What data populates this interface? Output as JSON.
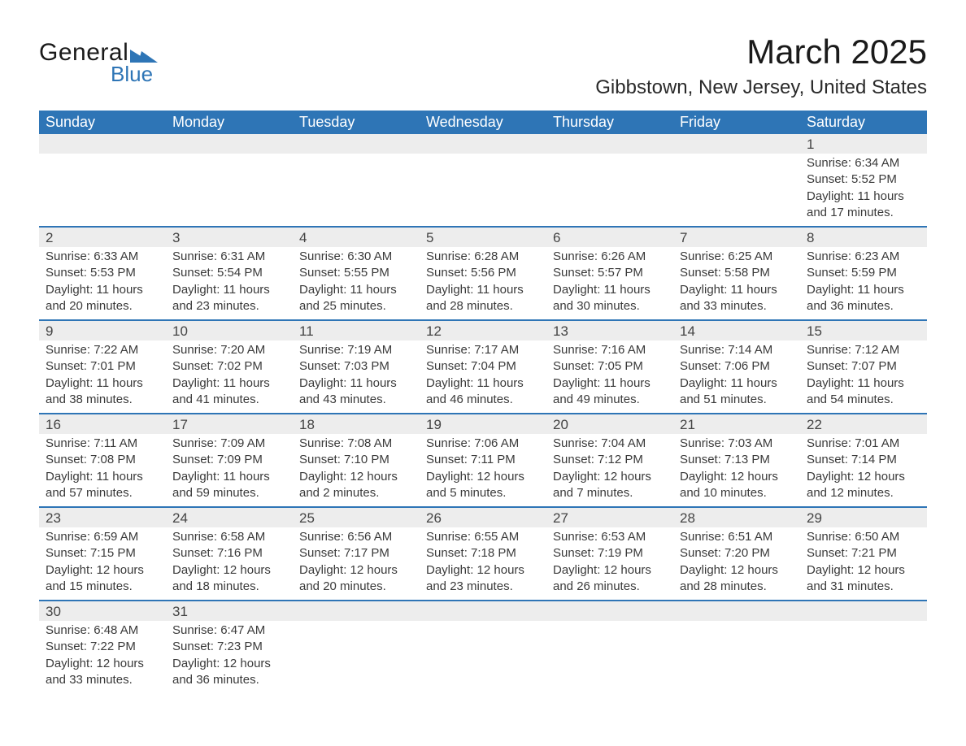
{
  "brand": {
    "word1": "General",
    "word2": "Blue",
    "accent_color": "#2e75b6"
  },
  "title": "March 2025",
  "location": "Gibbstown, New Jersey, United States",
  "colors": {
    "header_bg": "#2e75b6",
    "header_fg": "#ffffff",
    "daynum_bg": "#ededed",
    "rule": "#2e75b6",
    "text": "#3a3a3a",
    "background": "#ffffff"
  },
  "typography": {
    "title_fontsize": 42,
    "location_fontsize": 24,
    "dayheader_fontsize": 18,
    "daynum_fontsize": 17,
    "body_fontsize": 15
  },
  "day_headers": [
    "Sunday",
    "Monday",
    "Tuesday",
    "Wednesday",
    "Thursday",
    "Friday",
    "Saturday"
  ],
  "weeks": [
    [
      null,
      null,
      null,
      null,
      null,
      null,
      {
        "n": "1",
        "sunrise": "Sunrise: 6:34 AM",
        "sunset": "Sunset: 5:52 PM",
        "day1": "Daylight: 11 hours",
        "day2": "and 17 minutes."
      }
    ],
    [
      {
        "n": "2",
        "sunrise": "Sunrise: 6:33 AM",
        "sunset": "Sunset: 5:53 PM",
        "day1": "Daylight: 11 hours",
        "day2": "and 20 minutes."
      },
      {
        "n": "3",
        "sunrise": "Sunrise: 6:31 AM",
        "sunset": "Sunset: 5:54 PM",
        "day1": "Daylight: 11 hours",
        "day2": "and 23 minutes."
      },
      {
        "n": "4",
        "sunrise": "Sunrise: 6:30 AM",
        "sunset": "Sunset: 5:55 PM",
        "day1": "Daylight: 11 hours",
        "day2": "and 25 minutes."
      },
      {
        "n": "5",
        "sunrise": "Sunrise: 6:28 AM",
        "sunset": "Sunset: 5:56 PM",
        "day1": "Daylight: 11 hours",
        "day2": "and 28 minutes."
      },
      {
        "n": "6",
        "sunrise": "Sunrise: 6:26 AM",
        "sunset": "Sunset: 5:57 PM",
        "day1": "Daylight: 11 hours",
        "day2": "and 30 minutes."
      },
      {
        "n": "7",
        "sunrise": "Sunrise: 6:25 AM",
        "sunset": "Sunset: 5:58 PM",
        "day1": "Daylight: 11 hours",
        "day2": "and 33 minutes."
      },
      {
        "n": "8",
        "sunrise": "Sunrise: 6:23 AM",
        "sunset": "Sunset: 5:59 PM",
        "day1": "Daylight: 11 hours",
        "day2": "and 36 minutes."
      }
    ],
    [
      {
        "n": "9",
        "sunrise": "Sunrise: 7:22 AM",
        "sunset": "Sunset: 7:01 PM",
        "day1": "Daylight: 11 hours",
        "day2": "and 38 minutes."
      },
      {
        "n": "10",
        "sunrise": "Sunrise: 7:20 AM",
        "sunset": "Sunset: 7:02 PM",
        "day1": "Daylight: 11 hours",
        "day2": "and 41 minutes."
      },
      {
        "n": "11",
        "sunrise": "Sunrise: 7:19 AM",
        "sunset": "Sunset: 7:03 PM",
        "day1": "Daylight: 11 hours",
        "day2": "and 43 minutes."
      },
      {
        "n": "12",
        "sunrise": "Sunrise: 7:17 AM",
        "sunset": "Sunset: 7:04 PM",
        "day1": "Daylight: 11 hours",
        "day2": "and 46 minutes."
      },
      {
        "n": "13",
        "sunrise": "Sunrise: 7:16 AM",
        "sunset": "Sunset: 7:05 PM",
        "day1": "Daylight: 11 hours",
        "day2": "and 49 minutes."
      },
      {
        "n": "14",
        "sunrise": "Sunrise: 7:14 AM",
        "sunset": "Sunset: 7:06 PM",
        "day1": "Daylight: 11 hours",
        "day2": "and 51 minutes."
      },
      {
        "n": "15",
        "sunrise": "Sunrise: 7:12 AM",
        "sunset": "Sunset: 7:07 PM",
        "day1": "Daylight: 11 hours",
        "day2": "and 54 minutes."
      }
    ],
    [
      {
        "n": "16",
        "sunrise": "Sunrise: 7:11 AM",
        "sunset": "Sunset: 7:08 PM",
        "day1": "Daylight: 11 hours",
        "day2": "and 57 minutes."
      },
      {
        "n": "17",
        "sunrise": "Sunrise: 7:09 AM",
        "sunset": "Sunset: 7:09 PM",
        "day1": "Daylight: 11 hours",
        "day2": "and 59 minutes."
      },
      {
        "n": "18",
        "sunrise": "Sunrise: 7:08 AM",
        "sunset": "Sunset: 7:10 PM",
        "day1": "Daylight: 12 hours",
        "day2": "and 2 minutes."
      },
      {
        "n": "19",
        "sunrise": "Sunrise: 7:06 AM",
        "sunset": "Sunset: 7:11 PM",
        "day1": "Daylight: 12 hours",
        "day2": "and 5 minutes."
      },
      {
        "n": "20",
        "sunrise": "Sunrise: 7:04 AM",
        "sunset": "Sunset: 7:12 PM",
        "day1": "Daylight: 12 hours",
        "day2": "and 7 minutes."
      },
      {
        "n": "21",
        "sunrise": "Sunrise: 7:03 AM",
        "sunset": "Sunset: 7:13 PM",
        "day1": "Daylight: 12 hours",
        "day2": "and 10 minutes."
      },
      {
        "n": "22",
        "sunrise": "Sunrise: 7:01 AM",
        "sunset": "Sunset: 7:14 PM",
        "day1": "Daylight: 12 hours",
        "day2": "and 12 minutes."
      }
    ],
    [
      {
        "n": "23",
        "sunrise": "Sunrise: 6:59 AM",
        "sunset": "Sunset: 7:15 PM",
        "day1": "Daylight: 12 hours",
        "day2": "and 15 minutes."
      },
      {
        "n": "24",
        "sunrise": "Sunrise: 6:58 AM",
        "sunset": "Sunset: 7:16 PM",
        "day1": "Daylight: 12 hours",
        "day2": "and 18 minutes."
      },
      {
        "n": "25",
        "sunrise": "Sunrise: 6:56 AM",
        "sunset": "Sunset: 7:17 PM",
        "day1": "Daylight: 12 hours",
        "day2": "and 20 minutes."
      },
      {
        "n": "26",
        "sunrise": "Sunrise: 6:55 AM",
        "sunset": "Sunset: 7:18 PM",
        "day1": "Daylight: 12 hours",
        "day2": "and 23 minutes."
      },
      {
        "n": "27",
        "sunrise": "Sunrise: 6:53 AM",
        "sunset": "Sunset: 7:19 PM",
        "day1": "Daylight: 12 hours",
        "day2": "and 26 minutes."
      },
      {
        "n": "28",
        "sunrise": "Sunrise: 6:51 AM",
        "sunset": "Sunset: 7:20 PM",
        "day1": "Daylight: 12 hours",
        "day2": "and 28 minutes."
      },
      {
        "n": "29",
        "sunrise": "Sunrise: 6:50 AM",
        "sunset": "Sunset: 7:21 PM",
        "day1": "Daylight: 12 hours",
        "day2": "and 31 minutes."
      }
    ],
    [
      {
        "n": "30",
        "sunrise": "Sunrise: 6:48 AM",
        "sunset": "Sunset: 7:22 PM",
        "day1": "Daylight: 12 hours",
        "day2": "and 33 minutes."
      },
      {
        "n": "31",
        "sunrise": "Sunrise: 6:47 AM",
        "sunset": "Sunset: 7:23 PM",
        "day1": "Daylight: 12 hours",
        "day2": "and 36 minutes."
      },
      null,
      null,
      null,
      null,
      null
    ]
  ]
}
